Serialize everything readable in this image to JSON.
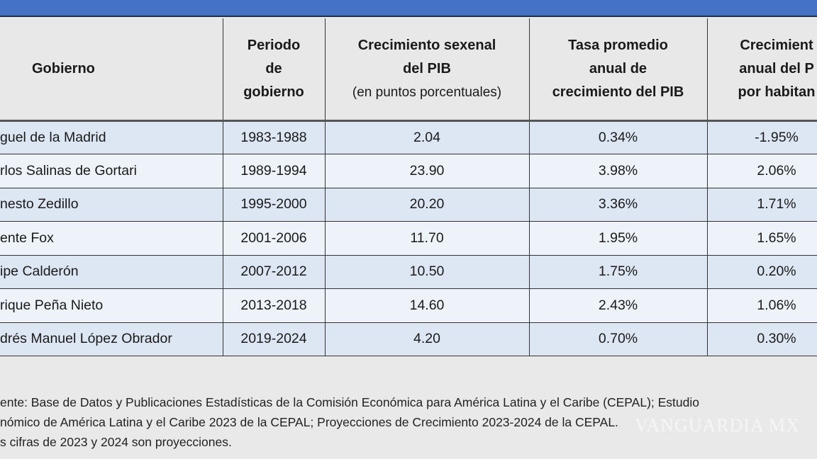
{
  "table": {
    "headers": [
      {
        "lines": [
          "Gobierno"
        ]
      },
      {
        "lines": [
          "Periodo",
          "de",
          "gobierno"
        ]
      },
      {
        "lines": [
          "Crecimiento sexenal",
          "del PIB"
        ],
        "sub": "(en puntos porcentuales)"
      },
      {
        "lines": [
          "Tasa promedio",
          "anual de",
          "crecimiento del PIB"
        ]
      },
      {
        "lines": [
          "Crecimient",
          "anual del P",
          "por habitan"
        ]
      }
    ],
    "rows": [
      [
        "guel de la Madrid",
        "1983-1988",
        "2.04",
        "0.34%",
        "-1.95%"
      ],
      [
        "rlos Salinas de Gortari",
        "1989-1994",
        "23.90",
        "3.98%",
        "2.06%"
      ],
      [
        "nesto Zedillo",
        "1995-2000",
        "20.20",
        "3.36%",
        "1.71%"
      ],
      [
        "ente Fox",
        "2001-2006",
        "11.70",
        "1.95%",
        "1.65%"
      ],
      [
        "ipe Calderón",
        "2007-2012",
        "10.50",
        "1.75%",
        "0.20%"
      ],
      [
        "rique Peña Nieto",
        "2013-2018",
        "14.60",
        "2.43%",
        "1.06%"
      ],
      [
        "drés Manuel López Obrador",
        "2019-2024",
        "4.20",
        "0.70%",
        "0.30%"
      ]
    ]
  },
  "footer": [
    "ente: Base de Datos y Publicaciones Estadísticas de la Comisión Económica para América Latina y el Caribe (CEPAL); Estudio",
    "nómico de América Latina y el Caribe 2023 de la CEPAL; Proyecciones de Crecimiento 2023-2024 de la CEPAL.",
    "s cifras de 2023 y 2024 son proyecciones."
  ],
  "watermark": "VANGUARDIA MX",
  "colors": {
    "header_bar": "#4472c4",
    "row_odd": "#dde7f3",
    "row_even": "#eef3fa",
    "header_bg": "#e8e8e8"
  }
}
